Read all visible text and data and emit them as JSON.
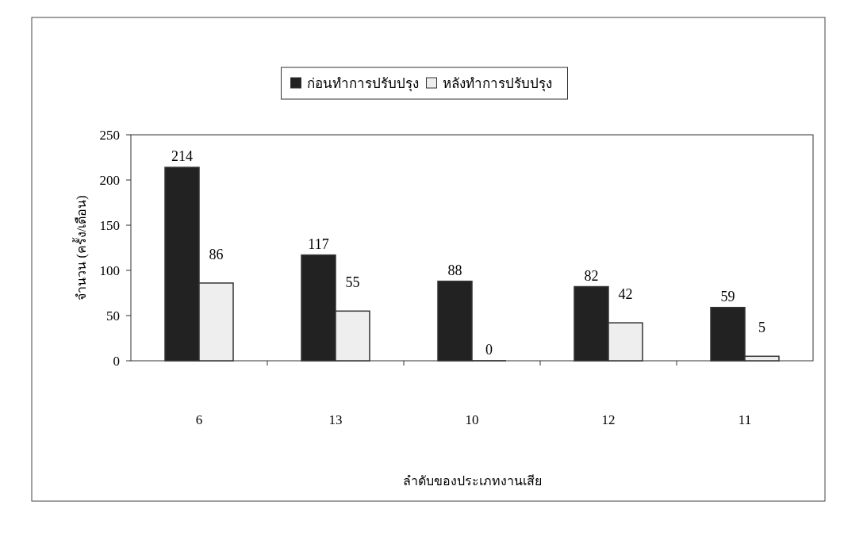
{
  "chart_data": {
    "type": "bar",
    "categories": [
      "6",
      "13",
      "10",
      "12",
      "11"
    ],
    "series": [
      {
        "name": "ก่อนทำการปรับปรุง",
        "color": "#222222",
        "values": [
          214,
          117,
          88,
          82,
          59
        ]
      },
      {
        "name": "หลังทำการปรับปรุง",
        "color": "#eeeeee",
        "values": [
          86,
          55,
          0,
          42,
          5
        ]
      }
    ],
    "ylim": [
      0,
      250
    ],
    "yticks": [
      0,
      50,
      100,
      150,
      200,
      250
    ],
    "xlabel": "ลำดับของประเภทงานเสีย",
    "ylabel": "จำนวน (ครั้ง/เดือน)",
    "data_labels": true,
    "legend": "top"
  }
}
